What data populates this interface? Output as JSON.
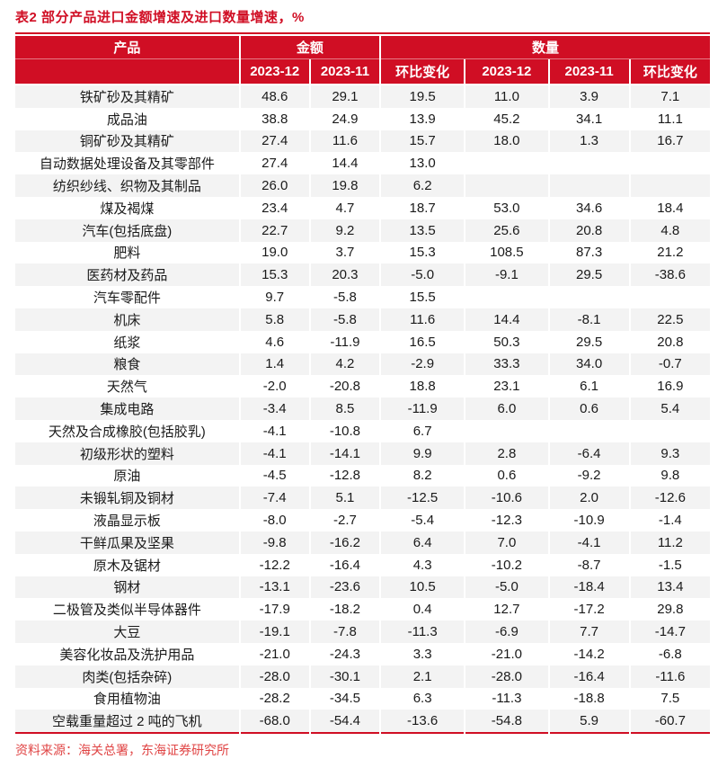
{
  "title": "表2  部分产品进口金额增速及进口数量增速，%",
  "source": "资料来源：海关总署，东海证券研究所",
  "colors": {
    "accent_red": "#d00e24",
    "stripe": "#f3f3f3",
    "source_red": "#e04545",
    "header_text": "#ffffff",
    "body_text": "#1a1a1a"
  },
  "table": {
    "col_product": "产品",
    "group_amount": "金额",
    "group_quantity": "数量",
    "subheaders": [
      "2023-12",
      "2023-11",
      "环比变化",
      "2023-12",
      "2023-11",
      "环比变化"
    ],
    "rows": [
      {
        "product": "铁矿砂及其精矿",
        "values": [
          "48.6",
          "29.1",
          "19.5",
          "11.0",
          "3.9",
          "7.1"
        ]
      },
      {
        "product": "成品油",
        "values": [
          "38.8",
          "24.9",
          "13.9",
          "45.2",
          "34.1",
          "11.1"
        ]
      },
      {
        "product": "铜矿砂及其精矿",
        "values": [
          "27.4",
          "11.6",
          "15.7",
          "18.0",
          "1.3",
          "16.7"
        ]
      },
      {
        "product": "自动数据处理设备及其零部件",
        "values": [
          "27.4",
          "14.4",
          "13.0",
          "",
          "",
          ""
        ]
      },
      {
        "product": "纺织纱线、织物及其制品",
        "values": [
          "26.0",
          "19.8",
          "6.2",
          "",
          "",
          ""
        ]
      },
      {
        "product": "煤及褐煤",
        "values": [
          "23.4",
          "4.7",
          "18.7",
          "53.0",
          "34.6",
          "18.4"
        ]
      },
      {
        "product": "汽车(包括底盘)",
        "values": [
          "22.7",
          "9.2",
          "13.5",
          "25.6",
          "20.8",
          "4.8"
        ]
      },
      {
        "product": "肥料",
        "values": [
          "19.0",
          "3.7",
          "15.3",
          "108.5",
          "87.3",
          "21.2"
        ]
      },
      {
        "product": "医药材及药品",
        "values": [
          "15.3",
          "20.3",
          "-5.0",
          "-9.1",
          "29.5",
          "-38.6"
        ]
      },
      {
        "product": "汽车零配件",
        "values": [
          "9.7",
          "-5.8",
          "15.5",
          "",
          "",
          ""
        ]
      },
      {
        "product": "机床",
        "values": [
          "5.8",
          "-5.8",
          "11.6",
          "14.4",
          "-8.1",
          "22.5"
        ]
      },
      {
        "product": "纸浆",
        "values": [
          "4.6",
          "-11.9",
          "16.5",
          "50.3",
          "29.5",
          "20.8"
        ]
      },
      {
        "product": "粮食",
        "values": [
          "1.4",
          "4.2",
          "-2.9",
          "33.3",
          "34.0",
          "-0.7"
        ]
      },
      {
        "product": "天然气",
        "values": [
          "-2.0",
          "-20.8",
          "18.8",
          "23.1",
          "6.1",
          "16.9"
        ]
      },
      {
        "product": "集成电路",
        "values": [
          "-3.4",
          "8.5",
          "-11.9",
          "6.0",
          "0.6",
          "5.4"
        ]
      },
      {
        "product": "天然及合成橡胶(包括胶乳)",
        "values": [
          "-4.1",
          "-10.8",
          "6.7",
          "",
          "",
          ""
        ]
      },
      {
        "product": "初级形状的塑料",
        "values": [
          "-4.1",
          "-14.1",
          "9.9",
          "2.8",
          "-6.4",
          "9.3"
        ]
      },
      {
        "product": "原油",
        "values": [
          "-4.5",
          "-12.8",
          "8.2",
          "0.6",
          "-9.2",
          "9.8"
        ]
      },
      {
        "product": "未锻轧铜及铜材",
        "values": [
          "-7.4",
          "5.1",
          "-12.5",
          "-10.6",
          "2.0",
          "-12.6"
        ]
      },
      {
        "product": "液晶显示板",
        "values": [
          "-8.0",
          "-2.7",
          "-5.4",
          "-12.3",
          "-10.9",
          "-1.4"
        ]
      },
      {
        "product": "干鲜瓜果及坚果",
        "values": [
          "-9.8",
          "-16.2",
          "6.4",
          "7.0",
          "-4.1",
          "11.2"
        ]
      },
      {
        "product": "原木及锯材",
        "values": [
          "-12.2",
          "-16.4",
          "4.3",
          "-10.2",
          "-8.7",
          "-1.5"
        ]
      },
      {
        "product": "钢材",
        "values": [
          "-13.1",
          "-23.6",
          "10.5",
          "-5.0",
          "-18.4",
          "13.4"
        ]
      },
      {
        "product": "二极管及类似半导体器件",
        "values": [
          "-17.9",
          "-18.2",
          "0.4",
          "12.7",
          "-17.2",
          "29.8"
        ]
      },
      {
        "product": "大豆",
        "values": [
          "-19.1",
          "-7.8",
          "-11.3",
          "-6.9",
          "7.7",
          "-14.7"
        ]
      },
      {
        "product": "美容化妆品及洗护用品",
        "values": [
          "-21.0",
          "-24.3",
          "3.3",
          "-21.0",
          "-14.2",
          "-6.8"
        ]
      },
      {
        "product": "肉类(包括杂碎)",
        "values": [
          "-28.0",
          "-30.1",
          "2.1",
          "-28.0",
          "-16.4",
          "-11.6"
        ]
      },
      {
        "product": "食用植物油",
        "values": [
          "-28.2",
          "-34.5",
          "6.3",
          "-11.3",
          "-18.8",
          "7.5"
        ]
      },
      {
        "product": "空载重量超过 2 吨的飞机",
        "values": [
          "-68.0",
          "-54.4",
          "-13.6",
          "-54.8",
          "5.9",
          "-60.7"
        ]
      }
    ]
  }
}
